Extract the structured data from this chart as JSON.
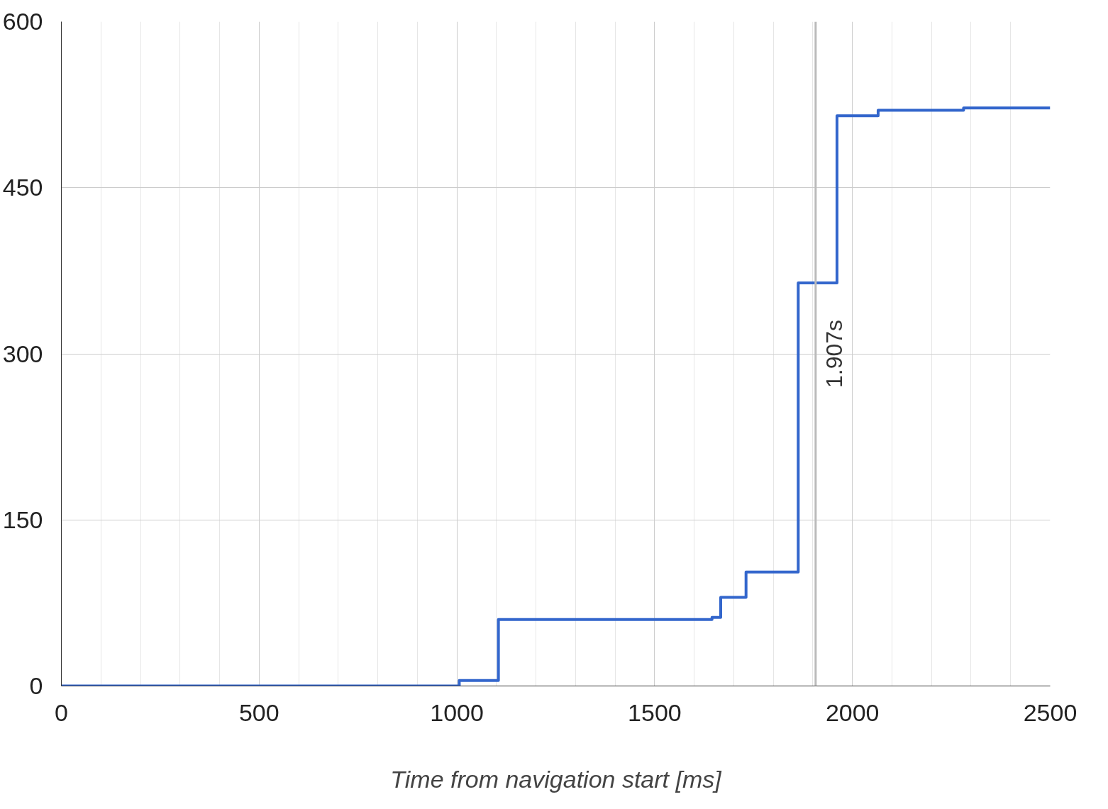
{
  "chart_data": {
    "type": "step",
    "xlabel": "Time from navigation start [ms]",
    "x": [
      0,
      1006,
      1105,
      1645,
      1667,
      1731,
      1863,
      1961,
      2065,
      2281,
      2500
    ],
    "series": [
      {
        "color": "#3366cc",
        "values": [
          0,
          5,
          60,
          62,
          80,
          103,
          364,
          515,
          520,
          522,
          522
        ]
      }
    ],
    "xlim": [
      0,
      2500
    ],
    "ylim": [
      0,
      600
    ],
    "xticks": [
      0,
      500,
      1000,
      1500,
      2000,
      2500
    ],
    "yticks": [
      0,
      150,
      300,
      450,
      600
    ],
    "grid": true,
    "ref_lines": [
      {
        "axis": "x",
        "value": 1907,
        "label": "1.907s",
        "color": "#bbbbbb"
      }
    ]
  }
}
